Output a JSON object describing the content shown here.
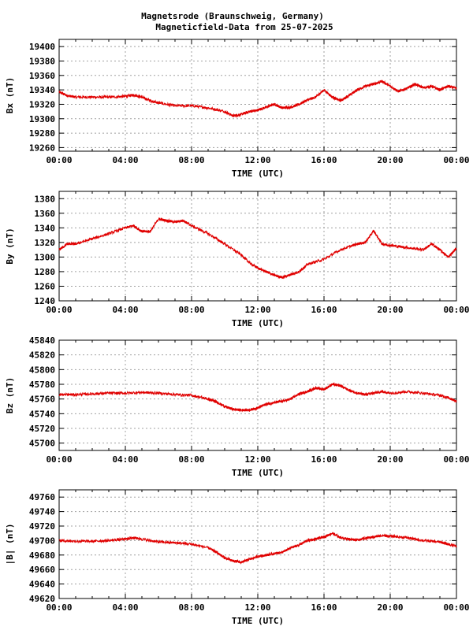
{
  "title_line1": "Magnetsrode (Braunschweig, Germany)",
  "title_line2": "Magneticfield-Data from 25-07-2025",
  "chart_data": [
    {
      "type": "line",
      "ylabel": "Bx (nT)",
      "xlabel": "TIME (UTC)",
      "x_ticks": [
        "00:00",
        "04:00",
        "08:00",
        "12:00",
        "16:00",
        "20:00",
        "00:00"
      ],
      "xlim": [
        0,
        24
      ],
      "ylim": [
        19255,
        19410
      ],
      "y_ticks": [
        19260,
        19280,
        19300,
        19320,
        19340,
        19360,
        19380,
        19400
      ],
      "grid": true,
      "series": [
        {
          "color": "#e00000",
          "x": [
            0,
            0.5,
            1,
            2,
            3,
            4,
            4.5,
            5,
            5.5,
            6,
            7,
            8,
            9,
            10,
            10.5,
            11,
            11.5,
            12,
            12.5,
            13,
            13.5,
            14,
            14.5,
            15,
            15.5,
            16,
            16.5,
            17,
            17.5,
            18,
            18.5,
            19,
            19.5,
            20,
            20.5,
            21,
            21.5,
            22,
            22.5,
            23,
            23.5,
            24
          ],
          "y": [
            19337,
            19332,
            19330,
            19330,
            19330,
            19331,
            19333,
            19330,
            19325,
            19322,
            19318,
            19318,
            19315,
            19310,
            19304,
            19306,
            19310,
            19312,
            19316,
            19320,
            19315,
            19316,
            19320,
            19326,
            19330,
            19340,
            19330,
            19325,
            19332,
            19340,
            19345,
            19348,
            19352,
            19345,
            19338,
            19342,
            19348,
            19343,
            19345,
            19340,
            19345,
            19342
          ]
        }
      ]
    },
    {
      "type": "line",
      "ylabel": "By (nT)",
      "xlabel": "TIME (UTC)",
      "x_ticks": [
        "00:00",
        "04:00",
        "08:00",
        "12:00",
        "16:00",
        "20:00",
        "00:00"
      ],
      "xlim": [
        0,
        24
      ],
      "ylim": [
        1240,
        1390
      ],
      "y_ticks": [
        1240,
        1260,
        1280,
        1300,
        1320,
        1340,
        1360,
        1380
      ],
      "grid": true,
      "series": [
        {
          "color": "#e00000",
          "x": [
            0,
            0.5,
            1,
            2,
            3,
            4,
            4.5,
            5,
            5.5,
            6,
            6.5,
            7,
            7.5,
            8,
            9,
            10,
            11,
            11.5,
            12,
            12.5,
            13,
            13.5,
            14,
            14.5,
            15,
            16,
            17,
            18,
            18.5,
            19,
            19.5,
            20,
            21,
            22,
            22.5,
            23,
            23.5,
            24
          ],
          "y": [
            1310,
            1318,
            1318,
            1325,
            1332,
            1340,
            1343,
            1335,
            1335,
            1352,
            1350,
            1348,
            1350,
            1343,
            1332,
            1318,
            1303,
            1292,
            1285,
            1280,
            1275,
            1272,
            1276,
            1280,
            1290,
            1297,
            1310,
            1318,
            1320,
            1336,
            1318,
            1316,
            1313,
            1310,
            1318,
            1310,
            1300,
            1312
          ]
        }
      ]
    },
    {
      "type": "line",
      "ylabel": "Bz (nT)",
      "xlabel": "TIME (UTC)",
      "x_ticks": [
        "00:00",
        "04:00",
        "08:00",
        "12:00",
        "16:00",
        "20:00",
        "00:00"
      ],
      "xlim": [
        0,
        24
      ],
      "ylim": [
        45690,
        45840
      ],
      "y_ticks": [
        45700,
        45720,
        45740,
        45760,
        45780,
        45800,
        45820,
        45840
      ],
      "grid": true,
      "series": [
        {
          "color": "#e00000",
          "x": [
            0,
            1,
            2,
            3,
            4,
            5,
            6,
            7,
            8,
            9,
            9.5,
            10,
            10.5,
            11,
            11.5,
            12,
            12.5,
            13,
            13.5,
            14,
            14.5,
            15,
            15.5,
            16,
            16.5,
            17,
            17.5,
            18,
            18.5,
            19,
            19.5,
            20,
            21,
            22,
            23,
            23.5,
            24
          ],
          "y": [
            45766,
            45766,
            45767,
            45768,
            45768,
            45769,
            45768,
            45766,
            45765,
            45760,
            45756,
            45750,
            45746,
            45745,
            45745,
            45748,
            45753,
            45755,
            45757,
            45760,
            45767,
            45770,
            45775,
            45773,
            45780,
            45778,
            45772,
            45768,
            45766,
            45768,
            45770,
            45768,
            45770,
            45768,
            45765,
            45762,
            45757
          ]
        }
      ]
    },
    {
      "type": "line",
      "ylabel": "|B| (nT)",
      "xlabel": "TIME (UTC)",
      "x_ticks": [
        "00:00",
        "04:00",
        "08:00",
        "12:00",
        "16:00",
        "20:00",
        "00:00"
      ],
      "xlim": [
        0,
        24
      ],
      "ylim": [
        49620,
        49770
      ],
      "y_ticks": [
        49620,
        49640,
        49660,
        49680,
        49700,
        49720,
        49740,
        49760
      ],
      "grid": true,
      "series": [
        {
          "color": "#e00000",
          "x": [
            0,
            1,
            2,
            3,
            4,
            4.5,
            5,
            6,
            7,
            8,
            9,
            9.5,
            10,
            10.5,
            11,
            11.5,
            12,
            12.5,
            13,
            13.5,
            14,
            14.5,
            15,
            15.5,
            16,
            16.5,
            17,
            17.5,
            18,
            18.5,
            19,
            19.5,
            20,
            21,
            22,
            23,
            23.5,
            24
          ],
          "y": [
            49700,
            49699,
            49699,
            49700,
            49702,
            49704,
            49702,
            49698,
            49697,
            49695,
            49690,
            49684,
            49676,
            49672,
            49670,
            49674,
            49678,
            49680,
            49682,
            49684,
            49690,
            49694,
            49700,
            49702,
            49705,
            49710,
            49704,
            49702,
            49701,
            49703,
            49705,
            49707,
            49706,
            49704,
            49700,
            49698,
            49695,
            49692
          ]
        }
      ]
    }
  ]
}
